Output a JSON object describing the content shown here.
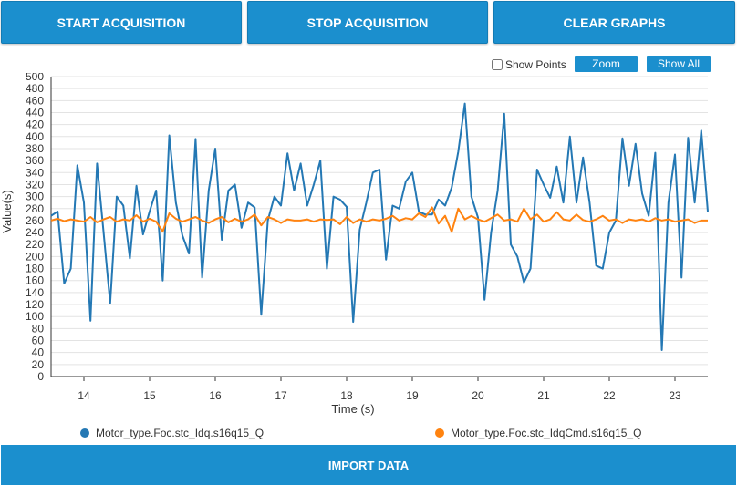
{
  "toolbar": {
    "start_label": "START ACQUISITION",
    "stop_label": "STOP ACQUISITION",
    "clear_label": "CLEAR GRAPHS"
  },
  "options": {
    "show_points_label": "Show Points",
    "show_points_checked": false,
    "zoom_label": "Zoom",
    "show_all_label": "Show All"
  },
  "import_label": "IMPORT DATA",
  "colors": {
    "accent": "#1b8fce",
    "series1": "#2478b4",
    "series2": "#ff8310",
    "grid": "#e3e3e3"
  },
  "chart_data": {
    "type": "line",
    "xlabel": "Time (s)",
    "ylabel": "Value(s)",
    "xlim": [
      13.5,
      23.5
    ],
    "ylim": [
      0,
      500
    ],
    "xticks": [
      14,
      15,
      16,
      17,
      18,
      19,
      20,
      21,
      22,
      23
    ],
    "yticks": [
      0,
      20,
      40,
      60,
      80,
      100,
      120,
      140,
      160,
      180,
      200,
      220,
      240,
      260,
      280,
      300,
      320,
      340,
      360,
      380,
      400,
      420,
      440,
      460,
      480,
      500
    ],
    "grid": true,
    "legend_position": "bottom",
    "series": [
      {
        "name": "Motor_type.Foc.stc_Idq.s16q15_Q",
        "color": "#2478b4",
        "x": [
          13.5,
          13.6,
          13.7,
          13.8,
          13.9,
          14.0,
          14.1,
          14.2,
          14.3,
          14.4,
          14.5,
          14.6,
          14.7,
          14.8,
          14.9,
          15.0,
          15.1,
          15.2,
          15.3,
          15.4,
          15.5,
          15.6,
          15.7,
          15.8,
          15.9,
          16.0,
          16.1,
          16.2,
          16.3,
          16.4,
          16.5,
          16.6,
          16.7,
          16.8,
          16.9,
          17.0,
          17.1,
          17.2,
          17.3,
          17.4,
          17.5,
          17.6,
          17.7,
          17.8,
          17.9,
          18.0,
          18.1,
          18.2,
          18.3,
          18.4,
          18.5,
          18.6,
          18.7,
          18.8,
          18.9,
          19.0,
          19.1,
          19.2,
          19.3,
          19.4,
          19.5,
          19.6,
          19.7,
          19.8,
          19.9,
          20.0,
          20.1,
          20.2,
          20.3,
          20.4,
          20.5,
          20.6,
          20.7,
          20.8,
          20.9,
          21.0,
          21.1,
          21.2,
          21.3,
          21.4,
          21.5,
          21.6,
          21.7,
          21.8,
          21.9,
          22.0,
          22.1,
          22.2,
          22.3,
          22.4,
          22.5,
          22.6,
          22.7,
          22.8,
          22.9,
          23.0,
          23.1,
          23.2,
          23.3,
          23.4,
          23.5
        ],
        "y": [
          268,
          275,
          155,
          180,
          352,
          290,
          93,
          355,
          240,
          122,
          300,
          285,
          197,
          318,
          237,
          275,
          310,
          160,
          402,
          290,
          235,
          205,
          396,
          165,
          310,
          380,
          228,
          310,
          320,
          248,
          290,
          282,
          103,
          260,
          300,
          285,
          372,
          310,
          355,
          285,
          320,
          360,
          180,
          300,
          295,
          283,
          91,
          245,
          290,
          340,
          345,
          195,
          285,
          280,
          325,
          340,
          275,
          270,
          270,
          295,
          285,
          315,
          375,
          455,
          300,
          265,
          128,
          240,
          310,
          438,
          220,
          200,
          157,
          180,
          345,
          320,
          298,
          350,
          290,
          400,
          290,
          365,
          290,
          185,
          180,
          240,
          260,
          397,
          318,
          388,
          305,
          268,
          373,
          44,
          290,
          370,
          165,
          398,
          290,
          410,
          275
        ]
      },
      {
        "name": "Motor_type.Foc.stc_IdqCmd.s16q15_Q",
        "color": "#ff8310",
        "x": [
          13.5,
          13.6,
          13.7,
          13.8,
          13.9,
          14.0,
          14.1,
          14.2,
          14.3,
          14.4,
          14.5,
          14.6,
          14.7,
          14.8,
          14.9,
          15.0,
          15.1,
          15.2,
          15.3,
          15.4,
          15.5,
          15.6,
          15.7,
          15.8,
          15.9,
          16.0,
          16.1,
          16.2,
          16.3,
          16.4,
          16.5,
          16.6,
          16.7,
          16.8,
          16.9,
          17.0,
          17.1,
          17.2,
          17.3,
          17.4,
          17.5,
          17.6,
          17.7,
          17.8,
          17.9,
          18.0,
          18.1,
          18.2,
          18.3,
          18.4,
          18.5,
          18.6,
          18.7,
          18.8,
          18.9,
          19.0,
          19.1,
          19.2,
          19.3,
          19.4,
          19.5,
          19.6,
          19.7,
          19.8,
          19.9,
          20.0,
          20.1,
          20.2,
          20.3,
          20.4,
          20.5,
          20.6,
          20.7,
          20.8,
          20.9,
          21.0,
          21.1,
          21.2,
          21.3,
          21.4,
          21.5,
          21.6,
          21.7,
          21.8,
          21.9,
          22.0,
          22.1,
          22.2,
          22.3,
          22.4,
          22.5,
          22.6,
          22.7,
          22.8,
          22.9,
          23.0,
          23.1,
          23.2,
          23.3,
          23.4,
          23.5
        ],
        "y": [
          260,
          263,
          259,
          262,
          260,
          258,
          266,
          257,
          262,
          266,
          258,
          262,
          260,
          269,
          258,
          263,
          258,
          242,
          272,
          263,
          258,
          262,
          266,
          260,
          256,
          262,
          266,
          257,
          263,
          258,
          262,
          270,
          252,
          266,
          262,
          256,
          262,
          260,
          260,
          262,
          258,
          262,
          261,
          262,
          254,
          266,
          256,
          262,
          258,
          262,
          260,
          263,
          268,
          260,
          264,
          262,
          272,
          266,
          282,
          255,
          268,
          241,
          280,
          262,
          268,
          262,
          258,
          264,
          270,
          260,
          262,
          258,
          280,
          262,
          270,
          258,
          262,
          274,
          262,
          260,
          270,
          261,
          258,
          262,
          268,
          260,
          262,
          256,
          262,
          260,
          262,
          258,
          264,
          260,
          262,
          258,
          260,
          262,
          256,
          260,
          260
        ]
      }
    ]
  }
}
